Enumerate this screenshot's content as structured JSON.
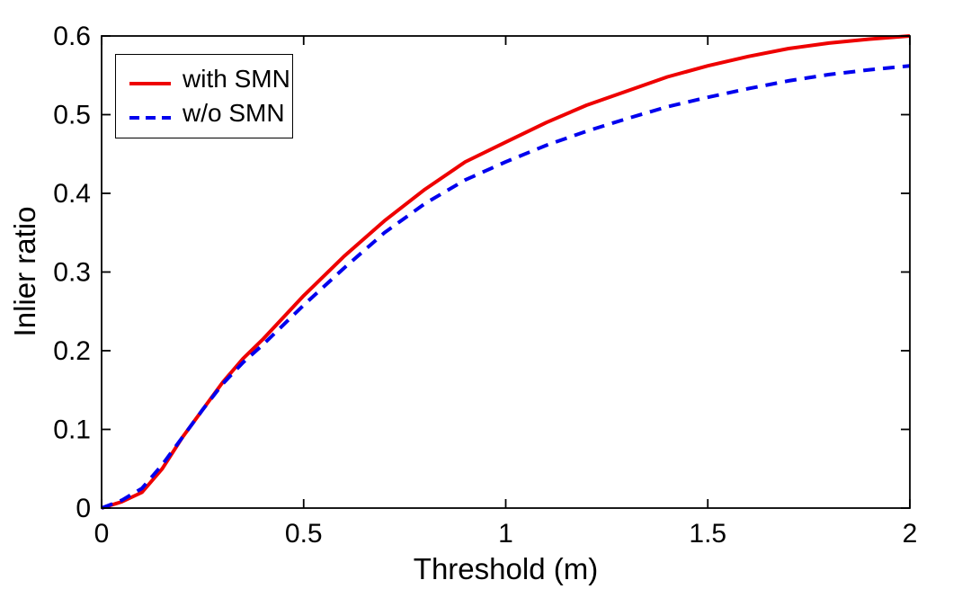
{
  "figure": {
    "background": "#ffffff",
    "axis_color": "#000000"
  },
  "chart_data": {
    "type": "line",
    "title": "",
    "xlabel": "Threshold (m)",
    "ylabel": "Inlier ratio",
    "xlim": [
      0,
      2
    ],
    "ylim": [
      0,
      0.6
    ],
    "xticks": [
      0,
      0.5,
      1,
      1.5,
      2
    ],
    "xtick_labels": [
      "0",
      "0.5",
      "1",
      "1.5",
      "2"
    ],
    "yticks": [
      0,
      0.1,
      0.2,
      0.3,
      0.4,
      0.5,
      0.6
    ],
    "ytick_labels": [
      "0",
      "0.1",
      "0.2",
      "0.3",
      "0.4",
      "0.5",
      "0.6"
    ],
    "grid": false,
    "legend_position": "top-left",
    "x": [
      0,
      0.05,
      0.1,
      0.15,
      0.2,
      0.25,
      0.3,
      0.35,
      0.4,
      0.5,
      0.6,
      0.7,
      0.8,
      0.9,
      1.0,
      1.1,
      1.2,
      1.3,
      1.4,
      1.5,
      1.6,
      1.7,
      1.8,
      1.9,
      2.0
    ],
    "series": [
      {
        "name": "with SMN",
        "color": "#ee0000",
        "style": "solid",
        "values": [
          0,
          0.008,
          0.02,
          0.05,
          0.09,
          0.125,
          0.16,
          0.19,
          0.215,
          0.27,
          0.32,
          0.365,
          0.405,
          0.44,
          0.465,
          0.49,
          0.512,
          0.53,
          0.548,
          0.562,
          0.574,
          0.584,
          0.591,
          0.596,
          0.6
        ]
      },
      {
        "name": "w/o SMN",
        "color": "#0000ee",
        "style": "dashed",
        "values": [
          0,
          0.01,
          0.025,
          0.055,
          0.09,
          0.125,
          0.158,
          0.185,
          0.208,
          0.258,
          0.305,
          0.35,
          0.387,
          0.417,
          0.44,
          0.461,
          0.479,
          0.495,
          0.51,
          0.522,
          0.533,
          0.543,
          0.551,
          0.557,
          0.562
        ]
      }
    ]
  }
}
